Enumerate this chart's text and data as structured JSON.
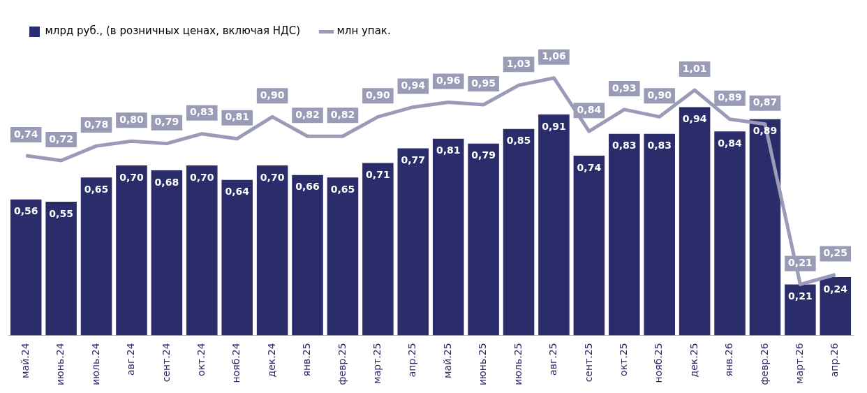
{
  "chart_data": {
    "type": "bar",
    "categories": [
      "май.24",
      "июнь.24",
      "июль.24",
      "авг.24",
      "сент.24",
      "окт.24",
      "нояб.24",
      "дек.24",
      "янв.25",
      "февр.25",
      "март.25",
      "апр.25",
      "май.25",
      "июнь.25",
      "июль.25",
      "авг.25",
      "сент.25",
      "окт.25",
      "нояб.25",
      "дек.25",
      "янв.26",
      "февр.26",
      "март.26",
      "апр.26"
    ],
    "series": [
      {
        "name": "млрд руб., (в розничных ценах, включая НДС)",
        "color": "#2b2c6a",
        "values": [
          0.56,
          0.55,
          0.65,
          0.7,
          0.68,
          0.7,
          0.64,
          0.7,
          0.66,
          0.65,
          0.71,
          0.77,
          0.81,
          0.79,
          0.85,
          0.91,
          0.74,
          0.83,
          0.83,
          0.94,
          0.84,
          0.89,
          0.21,
          0.24
        ],
        "value_labels": [
          "0,56",
          "0,55",
          "0,65",
          "0,70",
          "0,68",
          "0,70",
          "0,64",
          "0,70",
          "0,66",
          "0,65",
          "0,71",
          "0,77",
          "0,81",
          "0,79",
          "0,85",
          "0,91",
          "0,74",
          "0,83",
          "0,83",
          "0,94",
          "0,84",
          "0,89",
          "0,21",
          "0,24"
        ]
      },
      {
        "name": "млн упак.",
        "type": "line",
        "color": "#9a9bb7",
        "values": [
          0.74,
          0.72,
          0.78,
          0.8,
          0.79,
          0.83,
          0.81,
          0.9,
          0.82,
          0.82,
          0.9,
          0.94,
          0.96,
          0.95,
          1.03,
          1.06,
          0.84,
          0.93,
          0.9,
          1.01,
          0.89,
          0.87,
          0.21,
          0.25
        ],
        "value_labels": [
          "0,74",
          "0,72",
          "0,78",
          "0,80",
          "0,79",
          "0,83",
          "0,81",
          "0,90",
          "0,82",
          "0,82",
          "0,90",
          "0,94",
          "0,96",
          "0,95",
          "1,03",
          "1,06",
          "0,84",
          "0,93",
          "0,90",
          "1,01",
          "0,89",
          "0,87",
          "0,21",
          "0,25"
        ]
      }
    ],
    "legend": "top left",
    "grid": false,
    "tick_labels": "x",
    "marker": "none"
  }
}
